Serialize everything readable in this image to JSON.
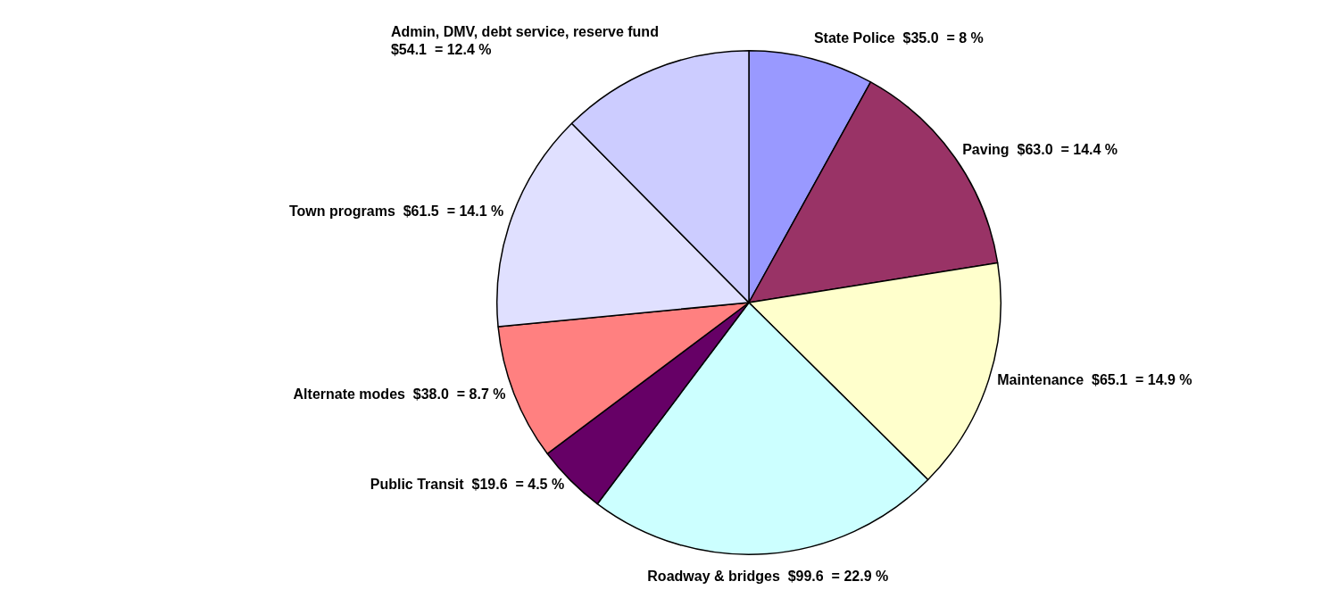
{
  "chart_data": {
    "type": "pie",
    "categories": [
      "State Police",
      "Paving",
      "Maintenance",
      "Roadway & bridges",
      "Public Transit",
      "Alternate modes",
      "Town programs",
      "Admin, DMV, debt service, reserve fund"
    ],
    "values": [
      35.0,
      63.0,
      65.1,
      99.6,
      19.6,
      38.0,
      61.5,
      54.1
    ],
    "value_labels": [
      "$35.0  = 8 %",
      "$63.0  = 14.4 %",
      "$65.1  = 14.9 %",
      "$99.6  = 22.9 %",
      "$19.6  = 4.5 %",
      "$38.0  = 8.7 %",
      "$61.5  = 14.1 %",
      "$54.1  = 12.4 %"
    ],
    "colors": [
      "#9999ff",
      "#993366",
      "#ffffcc",
      "#ccffff",
      "#660066",
      "#ff8080",
      "#e0e0ff",
      "#ccccff"
    ],
    "legend": false
  }
}
